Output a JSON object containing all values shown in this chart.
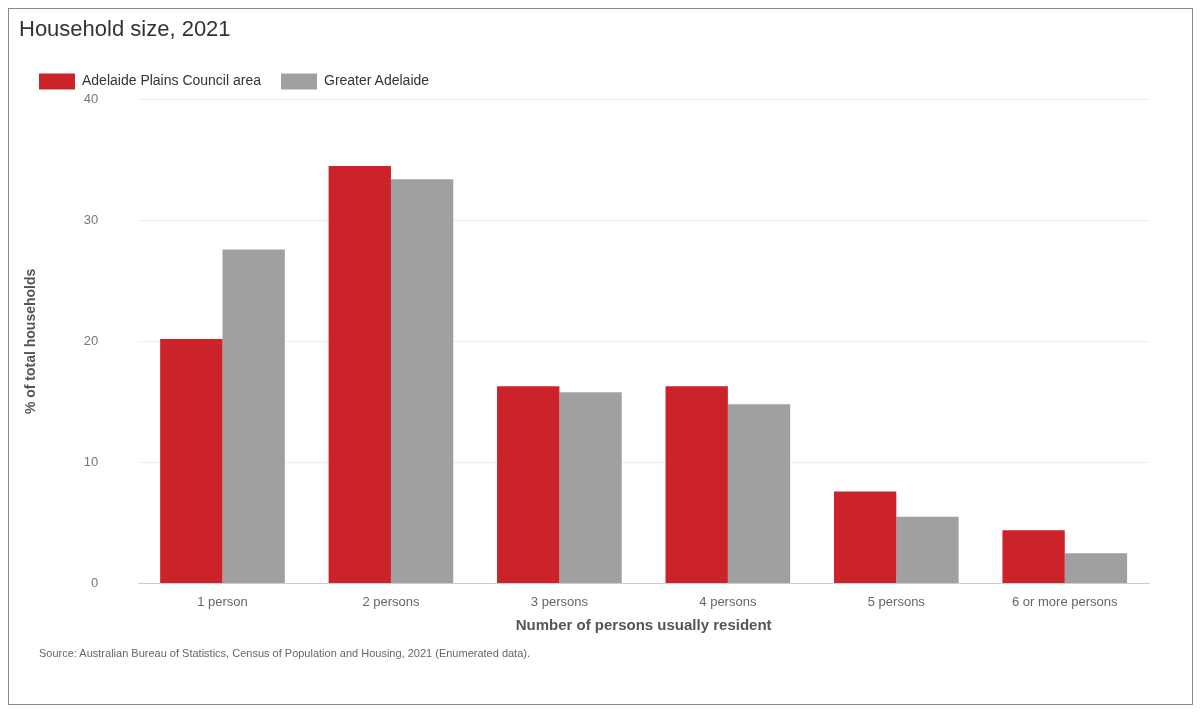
{
  "chart_data": {
    "type": "bar",
    "title": "Household size, 2021",
    "xlabel": "Number of persons usually resident",
    "ylabel": "% of total households",
    "categories": [
      "1 person",
      "2 persons",
      "3 persons",
      "4 persons",
      "5 persons",
      "6 or more persons"
    ],
    "series": [
      {
        "name": "Adelaide Plains Council area",
        "color": "#cc2229",
        "values": [
          20.2,
          34.5,
          16.3,
          16.3,
          7.6,
          4.4
        ]
      },
      {
        "name": "Greater Adelaide",
        "color": "#a0a0a0",
        "values": [
          27.6,
          33.4,
          15.8,
          14.8,
          5.5,
          2.5
        ]
      }
    ],
    "ylim": [
      0,
      40
    ],
    "yticks": [
      0,
      10,
      20,
      30,
      40
    ],
    "grid": "y",
    "legend": "top left",
    "annotations": [
      "Source: Australian Bureau of Statistics, Census of Population and Housing, 2021 (Enumerated data)."
    ]
  }
}
